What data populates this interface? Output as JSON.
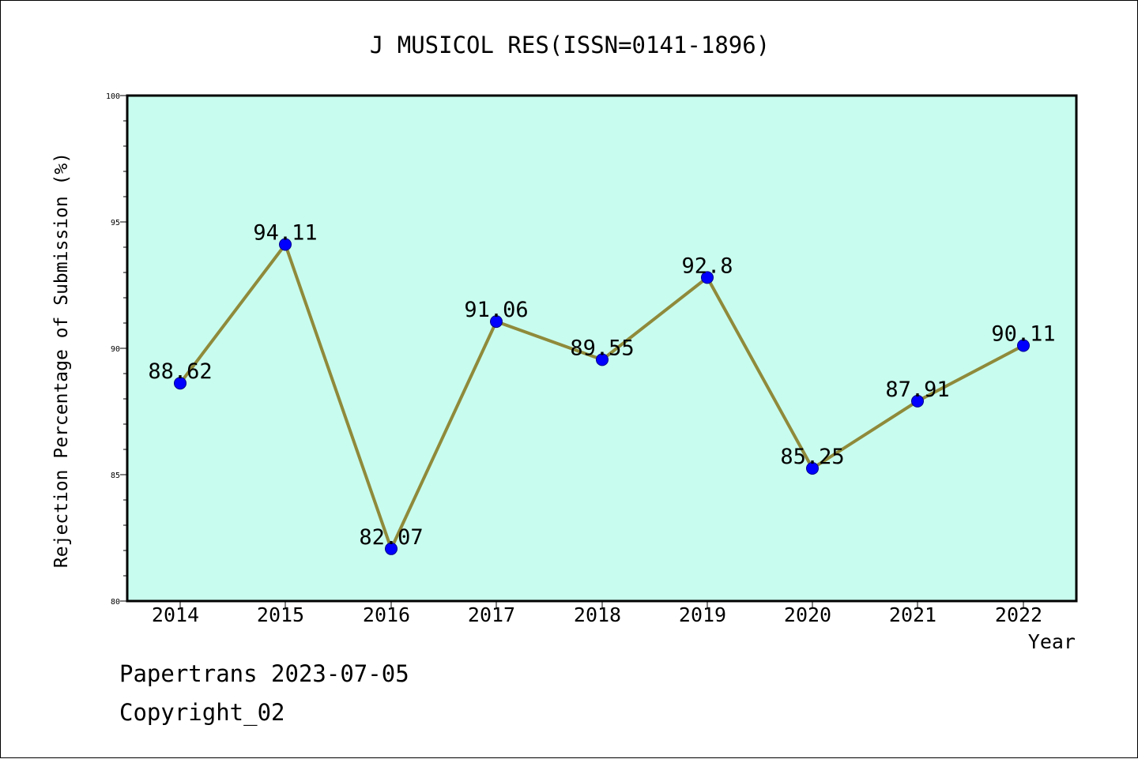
{
  "chart_data": {
    "type": "line",
    "title": "J MUSICOL RES(ISSN=0141-1896)",
    "xlabel": "Year",
    "ylabel": "Rejection Percentage of Submission (%)",
    "categories": [
      "2014",
      "2015",
      "2016",
      "2017",
      "2018",
      "2019",
      "2020",
      "2021",
      "2022"
    ],
    "values": [
      88.62,
      94.11,
      82.07,
      91.06,
      89.55,
      92.8,
      85.25,
      87.91,
      90.11
    ],
    "data_labels": [
      "88.62",
      "94.11",
      "82.07",
      "91.06",
      "89.55",
      "92.8",
      "85.25",
      "87.91",
      "90.11"
    ],
    "ylim": [
      80,
      100
    ],
    "yticks": [
      80,
      85,
      90,
      95,
      100
    ],
    "ytick_labels": [
      "80",
      "85",
      "90",
      "95",
      "100"
    ],
    "grid": false,
    "legend": "none",
    "colors": {
      "plot_background": "#c8fcee",
      "line": "#8f8a3a",
      "marker": "#0000ff",
      "marker_edge": "#00008b"
    }
  },
  "footer": {
    "line1": "Papertrans 2023-07-05",
    "line2": "Copyright_02"
  }
}
